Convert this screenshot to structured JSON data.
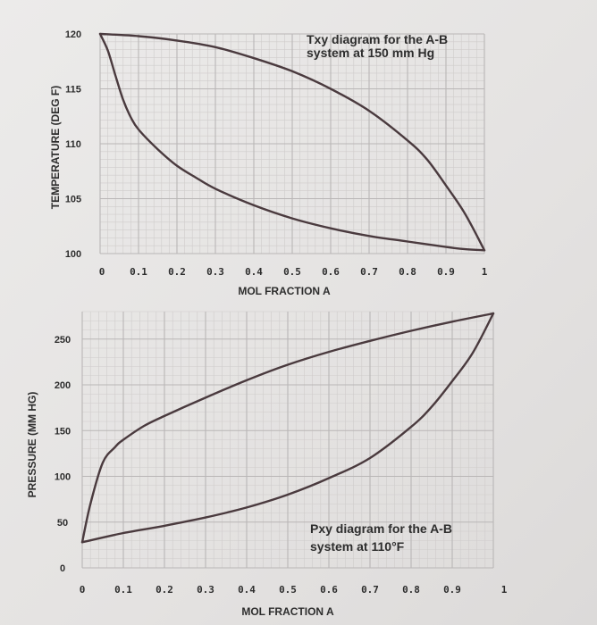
{
  "chart_data": [
    {
      "type": "line",
      "title": [
        "Txy diagram for the A-B",
        "system at 150 mm Hg"
      ],
      "xlabel": "MOL FRACTION A",
      "ylabel": "TEMPERATURE (DEG F)",
      "xlim": [
        0,
        1
      ],
      "ylim": [
        100,
        120
      ],
      "x_ticks": [
        "0",
        "0.1",
        "0.2",
        "0.3",
        "0.4",
        "0.5",
        "0.6",
        "0.7",
        "0.8",
        "0.9",
        "1"
      ],
      "y_ticks": [
        "100",
        "105",
        "110",
        "115",
        "120"
      ],
      "grid": true,
      "series": [
        {
          "color": "#4a3a3e",
          "x": [
            0,
            0.02,
            0.04,
            0.06,
            0.08,
            0.1,
            0.15,
            0.2,
            0.25,
            0.3,
            0.4,
            0.5,
            0.6,
            0.7,
            0.8,
            0.9,
            0.95,
            1.0
          ],
          "y": [
            120,
            118.5,
            116.2,
            114.0,
            112.4,
            111.3,
            109.5,
            108.0,
            106.9,
            105.9,
            104.4,
            103.2,
            102.3,
            101.6,
            101.1,
            100.6,
            100.4,
            100.3
          ]
        },
        {
          "color": "#4a3a3e",
          "x": [
            0,
            0.1,
            0.2,
            0.3,
            0.4,
            0.5,
            0.6,
            0.7,
            0.8,
            0.85,
            0.9,
            0.95,
            1.0
          ],
          "y": [
            120,
            119.8,
            119.4,
            118.8,
            117.8,
            116.6,
            115.0,
            113.0,
            110.3,
            108.6,
            106.2,
            103.6,
            100.3
          ]
        }
      ]
    },
    {
      "type": "line",
      "title": [
        "Pxy diagram for the A-B",
        "system at 110°F"
      ],
      "xlabel": "MOL FRACTION A",
      "ylabel": "PRESSURE (MM HG)",
      "xlim": [
        0,
        1
      ],
      "ylim": [
        0,
        280
      ],
      "x_ticks": [
        "0",
        "0.1",
        "0.2",
        "0.3",
        "0.4",
        "0.5",
        "0.6",
        "0.7",
        "0.8",
        "0.9",
        "1"
      ],
      "y_ticks": [
        "0",
        "50",
        "100",
        "150",
        "200",
        "250"
      ],
      "grid": true,
      "series": [
        {
          "color": "#4a3a3e",
          "x": [
            0,
            0.02,
            0.05,
            0.08,
            0.1,
            0.15,
            0.2,
            0.3,
            0.4,
            0.5,
            0.6,
            0.7,
            0.8,
            0.9,
            1.0
          ],
          "y": [
            28,
            70,
            115,
            132,
            140,
            155,
            166,
            186,
            205,
            222,
            236,
            248,
            259,
            269,
            278
          ]
        },
        {
          "color": "#4a3a3e",
          "x": [
            0,
            0.1,
            0.2,
            0.3,
            0.4,
            0.5,
            0.6,
            0.7,
            0.8,
            0.85,
            0.9,
            0.95,
            1.0
          ],
          "y": [
            28,
            38,
            46,
            55,
            66,
            80,
            98,
            120,
            154,
            176,
            204,
            235,
            278
          ]
        }
      ]
    }
  ]
}
